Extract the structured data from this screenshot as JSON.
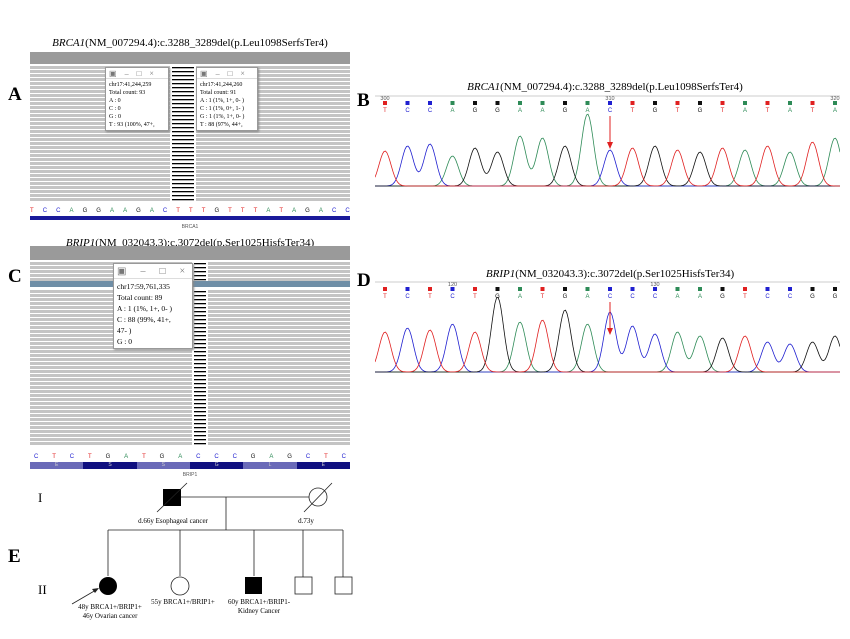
{
  "panels": {
    "a": "A",
    "b": "B",
    "c": "C",
    "d": "D",
    "e": "E"
  },
  "titleA": {
    "gene": "BRCA1",
    "rest": "(NM_007294.4):c.3288_3289del(p.Leu1098SerfsTer4)"
  },
  "titleB": {
    "gene": "BRCA1",
    "rest": "(NM_007294.4):c.3288_3289del(p.Leu1098SerfsTer4)"
  },
  "titleC": {
    "gene": "BRIP1",
    "rest": "(NM_032043.3):c.3072del(p.Ser1025HisfsTer34)"
  },
  "titleD": {
    "gene": "BRIP1",
    "rest": "(NM_032043.3):c.3072del(p.Ser1025HisfsTer34)"
  },
  "igvA": {
    "popup1": {
      "locus": "chr17:41,244,259",
      "lines": [
        "Total count: 93",
        "A : 0",
        "C : 0",
        "G : 0",
        "T : 93 (100%, 47+,"
      ]
    },
    "popup2": {
      "locus": "chr17:41,244,260",
      "lines": [
        "Total count: 91",
        "A : 1 (1%, 1+, 0- )",
        "C : 1 (1%, 0+, 1- )",
        "G : 1 (1%, 1+, 0- )",
        "T : 88 (97%, 44+,"
      ]
    },
    "sequence": [
      "T",
      "C",
      "C",
      "A",
      "G",
      "G",
      "A",
      "A",
      "G",
      "A",
      "C",
      "T",
      "T",
      "T",
      "G",
      "T",
      "T",
      "T",
      "A",
      "T",
      "A",
      "G",
      "A",
      "C",
      "C"
    ],
    "gene": "BRCA1"
  },
  "igvC": {
    "popup": {
      "locus": "chr17:59,761,335",
      "lines": [
        "Total count: 89",
        "A : 1 (1%, 1+, 0- )",
        "C : 88 (99%, 41+,",
        "47- )",
        "G : 0"
      ]
    },
    "sequence": [
      "C",
      "T",
      "C",
      "T",
      "G",
      "A",
      "T",
      "G",
      "A",
      "C",
      "C",
      "C",
      "G",
      "A",
      "G",
      "C",
      "T",
      "C"
    ],
    "aminoacids": [
      "E",
      "S",
      "S",
      "G",
      "L",
      "E"
    ],
    "gene": "BRIP1"
  },
  "chromB": {
    "ticks": [
      "300",
      "310",
      "320"
    ],
    "bases": [
      "T",
      "C",
      "C",
      "A",
      "G",
      "G",
      "A",
      "A",
      "G",
      "A",
      "C",
      "T",
      "G",
      "T",
      "G",
      "T",
      "A",
      "T",
      "A",
      "T",
      "A"
    ]
  },
  "chromD": {
    "ticks": [
      "120",
      "130"
    ],
    "bases": [
      "T",
      "C",
      "T",
      "C",
      "T",
      "G",
      "A",
      "T",
      "G",
      "A",
      "C",
      "C",
      "C",
      "A",
      "A",
      "G",
      "T",
      "C",
      "C",
      "G",
      "G"
    ]
  },
  "baseColors": {
    "A": "#2e8b57",
    "C": "#2020d0",
    "G": "#111111",
    "T": "#e02020"
  },
  "pedigree": {
    "gen1": "I",
    "gen2": "II",
    "father": "d.66y Esophageal cancer",
    "mother": "d.73y",
    "proband": [
      "48y BRCA1+/BRIP1+",
      "46y Ovarian cancer"
    ],
    "sister": "55y BRCA1+/BRIP1+",
    "brother": [
      "60y BRCA1+/BRIP1-",
      "Kidney Cancer"
    ]
  }
}
